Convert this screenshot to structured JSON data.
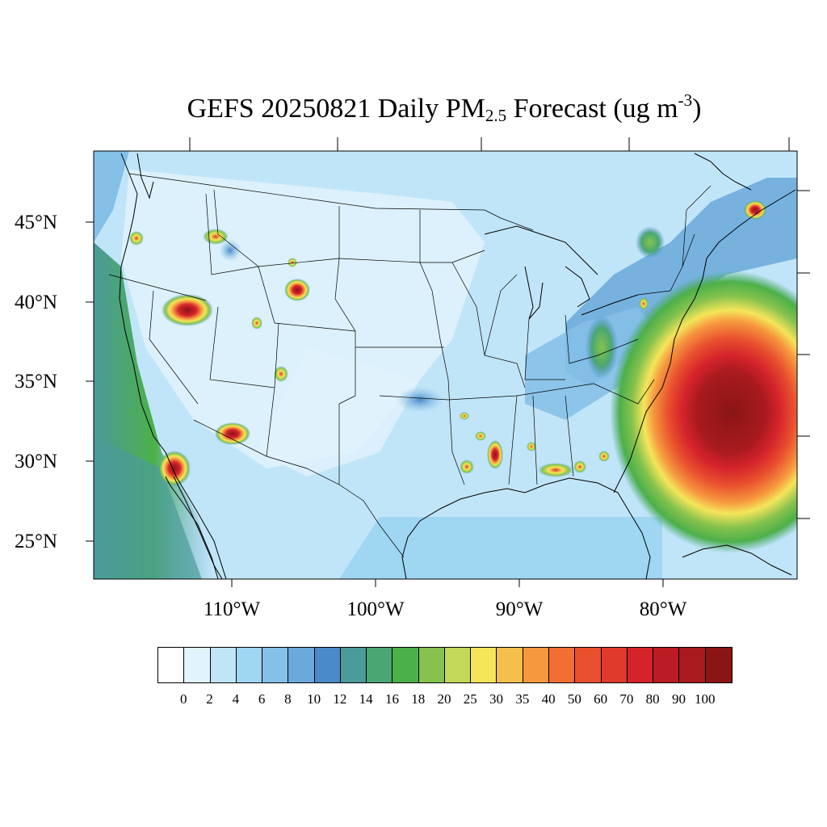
{
  "title": {
    "prefix": "GEFS 20250821 Daily PM",
    "sub": "2.5",
    "middle": " Forecast (ug m",
    "sup": "-3",
    "suffix": ")"
  },
  "lat_labels": [
    "45°N",
    "40°N",
    "35°N",
    "30°N",
    "25°N"
  ],
  "lon_labels": [
    "110°W",
    "100°W",
    "90°W",
    "80°W"
  ],
  "colorbar": {
    "labels": [
      "0",
      "2",
      "4",
      "6",
      "8",
      "10",
      "12",
      "14",
      "16",
      "18",
      "20",
      "25",
      "30",
      "35",
      "40",
      "50",
      "60",
      "70",
      "80",
      "90",
      "100"
    ],
    "colors": [
      "#ffffff",
      "#e1f3fc",
      "#c1e5f8",
      "#9fd6f2",
      "#84c0e8",
      "#6aa9db",
      "#4a8ac8",
      "#4a9b9a",
      "#4aa672",
      "#4cb04a",
      "#86c24d",
      "#c3d857",
      "#f5e55a",
      "#f6be4d",
      "#f6983e",
      "#f26f33",
      "#e9502e",
      "#df3a2b",
      "#d5232b",
      "#bb1b23",
      "#a81a1e",
      "#8b1515"
    ]
  },
  "map": {
    "background_color": "#c1e5f8",
    "hotspots": [
      {
        "name": "pacific-ocean-west",
        "level": 16
      },
      {
        "name": "atlantic-tropical-storm",
        "level": 100
      },
      {
        "name": "utah-fire",
        "level": 100
      },
      {
        "name": "southern-california-fire",
        "level": 100
      },
      {
        "name": "arizona-fire",
        "level": 100
      },
      {
        "name": "wyoming-fire",
        "level": 100
      },
      {
        "name": "idaho-fire",
        "level": 80
      },
      {
        "name": "oregon-fire",
        "level": 50
      },
      {
        "name": "louisiana-mississippi-fires",
        "level": 80
      },
      {
        "name": "nova-scotia-fire",
        "level": 100
      },
      {
        "name": "appalachian-smoke",
        "level": 25
      }
    ]
  }
}
